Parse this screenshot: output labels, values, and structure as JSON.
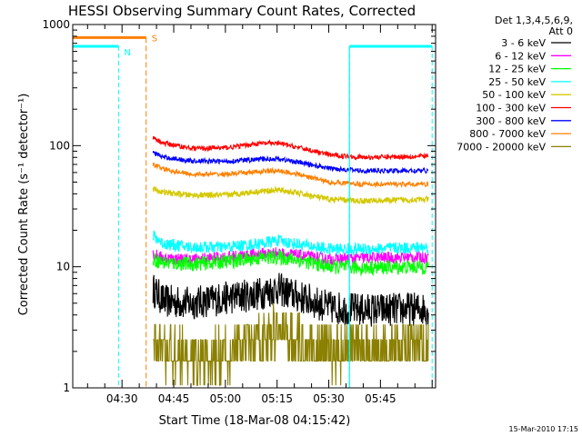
{
  "chart_data": {
    "type": "line",
    "title": "HESSI Observing Summary Count Rates, Corrected",
    "xlabel": "Start Time (18-Mar-08 04:15:42)",
    "ylabel": "Corrected Count Rate (s⁻¹ detector⁻¹)",
    "yscale": "log",
    "ylim": [
      1,
      1000
    ],
    "xlim_minutes": [
      "04:15:42",
      "06:01:00"
    ],
    "x_tick_labels": [
      "04:30",
      "04:45",
      "05:00",
      "05:15",
      "05:30",
      "05:45"
    ],
    "y_tick_labels": [
      "1",
      "10",
      "100",
      "1000"
    ],
    "legend_header": [
      "Det 1,3,4,5,6,9,",
      "Att 0"
    ],
    "legend_position": "right",
    "series": [
      {
        "name": "3 - 6 keV",
        "color": "#000000",
        "x": [
          "04:39",
          "04:42",
          "04:50",
          "05:00",
          "05:10",
          "05:15",
          "05:20",
          "05:30",
          "05:40",
          "05:59"
        ],
        "y": [
          6.5,
          5.2,
          5.0,
          5.5,
          6.0,
          6.6,
          5.8,
          4.6,
          4.4,
          4.5
        ]
      },
      {
        "name": "6 - 12 keV",
        "color": "#ff00ff",
        "x": [
          "04:39",
          "04:42",
          "04:50",
          "05:00",
          "05:10",
          "05:15",
          "05:20",
          "05:30",
          "05:40",
          "05:59"
        ],
        "y": [
          12.8,
          11.8,
          11.5,
          12.0,
          12.8,
          13.0,
          12.5,
          11.5,
          11.8,
          12.0
        ]
      },
      {
        "name": "12 - 25 keV",
        "color": "#00ff00",
        "x": [
          "04:39",
          "04:42",
          "04:50",
          "05:00",
          "05:10",
          "05:15",
          "05:20",
          "05:30",
          "05:40",
          "05:59"
        ],
        "y": [
          11.5,
          10.8,
          10.5,
          11.0,
          11.8,
          12.0,
          11.5,
          10.0,
          9.8,
          10.0
        ]
      },
      {
        "name": "25 - 50 keV",
        "color": "#00ffff",
        "x": [
          "04:39",
          "04:42",
          "04:50",
          "05:00",
          "05:10",
          "05:15",
          "05:20",
          "05:30",
          "05:40",
          "05:59"
        ],
        "y": [
          18.0,
          15.5,
          14.5,
          14.5,
          15.5,
          16.5,
          15.5,
          14.0,
          14.0,
          14.5
        ]
      },
      {
        "name": "50 - 100 keV",
        "color": "#d4c800",
        "x": [
          "04:39",
          "04:42",
          "04:50",
          "05:00",
          "05:10",
          "05:15",
          "05:20",
          "05:30",
          "05:40",
          "05:59"
        ],
        "y": [
          44,
          41,
          39,
          39,
          42,
          43,
          41,
          36,
          35,
          36
        ]
      },
      {
        "name": "100 - 300 keV",
        "color": "#ff0000",
        "x": [
          "04:39",
          "04:42",
          "04:50",
          "05:00",
          "05:10",
          "05:15",
          "05:20",
          "05:30",
          "05:40",
          "05:59"
        ],
        "y": [
          115,
          105,
          95,
          96,
          104,
          105,
          98,
          84,
          80,
          82
        ]
      },
      {
        "name": "300 - 800 keV",
        "color": "#0000ff",
        "x": [
          "04:39",
          "04:42",
          "04:50",
          "05:00",
          "05:10",
          "05:15",
          "05:20",
          "05:30",
          "05:40",
          "05:59"
        ],
        "y": [
          88,
          80,
          75,
          74,
          77,
          78,
          74,
          65,
          62,
          62
        ]
      },
      {
        "name": "800 - 7000 keV",
        "color": "#ff8000",
        "x": [
          "04:39",
          "04:42",
          "04:50",
          "05:00",
          "05:10",
          "05:15",
          "05:20",
          "05:30",
          "05:40",
          "05:59"
        ],
        "y": [
          70,
          64,
          58,
          58,
          61,
          62,
          59,
          50,
          48,
          48
        ]
      },
      {
        "name": "7000 - 20000 keV",
        "color": "#8b8000",
        "x": [
          "04:39",
          "04:42",
          "04:50",
          "05:00",
          "05:10",
          "05:15",
          "05:20",
          "05:30",
          "05:40",
          "05:59"
        ],
        "y": [
          2.4,
          2.0,
          1.7,
          1.8,
          2.4,
          3.0,
          2.5,
          2.0,
          2.1,
          2.2
        ]
      }
    ],
    "night_markers": {
      "label": "N",
      "color": "#00ffff",
      "level": 660,
      "day_intervals": [
        [
          "04:15:42",
          "04:29"
        ],
        [
          "05:36",
          "06:00"
        ]
      ],
      "boundaries": [
        "04:29",
        "05:36",
        "06:00"
      ]
    },
    "saa_markers": {
      "label": "S",
      "color": "#ff8000",
      "level": 780,
      "intervals": [
        [
          "04:15:42",
          "04:37"
        ]
      ],
      "boundaries": [
        "04:37"
      ]
    },
    "footer_date": "15-Mar-2010 17:15"
  }
}
